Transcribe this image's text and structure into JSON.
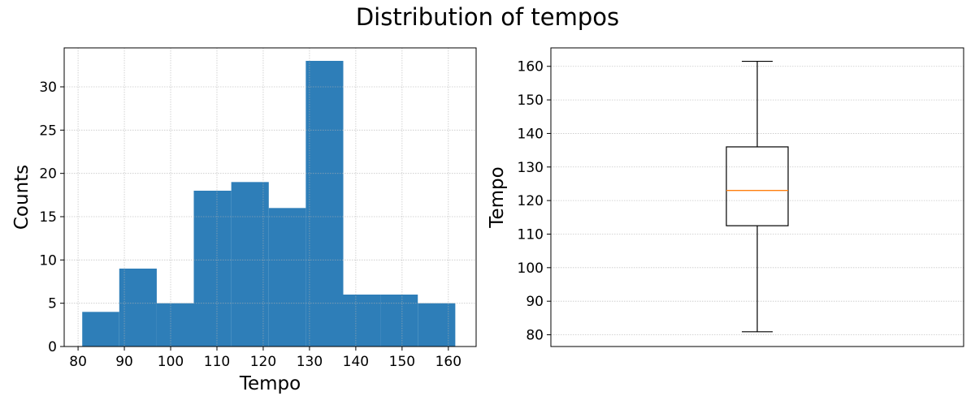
{
  "figure": {
    "title": "Distribution of tempos"
  },
  "chart_data": [
    {
      "type": "bar",
      "subtype": "histogram",
      "xlabel": "Tempo",
      "ylabel": "Counts",
      "xlim": [
        77,
        166
      ],
      "ylim": [
        0,
        34.5
      ],
      "xticks": [
        80,
        90,
        100,
        110,
        120,
        130,
        140,
        150,
        160
      ],
      "yticks": [
        0,
        5,
        10,
        15,
        20,
        25,
        30
      ],
      "grid": true,
      "bar_color": "#2e7eb8",
      "bins": [
        {
          "start": 80.9,
          "end": 88.9,
          "count": 4
        },
        {
          "start": 88.9,
          "end": 97.0,
          "count": 9
        },
        {
          "start": 97.0,
          "end": 105.0,
          "count": 5
        },
        {
          "start": 105.0,
          "end": 113.1,
          "count": 18
        },
        {
          "start": 113.1,
          "end": 121.2,
          "count": 19
        },
        {
          "start": 121.2,
          "end": 129.2,
          "count": 16
        },
        {
          "start": 129.2,
          "end": 137.3,
          "count": 33
        },
        {
          "start": 137.3,
          "end": 145.3,
          "count": 6
        },
        {
          "start": 145.3,
          "end": 153.4,
          "count": 6
        },
        {
          "start": 153.4,
          "end": 161.5,
          "count": 5
        }
      ]
    },
    {
      "type": "box",
      "ylabel": "Tempo",
      "ylim": [
        76.5,
        165.5
      ],
      "yticks": [
        80,
        90,
        100,
        110,
        120,
        130,
        140,
        150,
        160
      ],
      "grid": true,
      "median_color": "#ff7f0e",
      "box": {
        "whisker_low": 80.9,
        "q1": 112.5,
        "median": 123.0,
        "q3": 136.0,
        "whisker_high": 161.5
      }
    }
  ]
}
